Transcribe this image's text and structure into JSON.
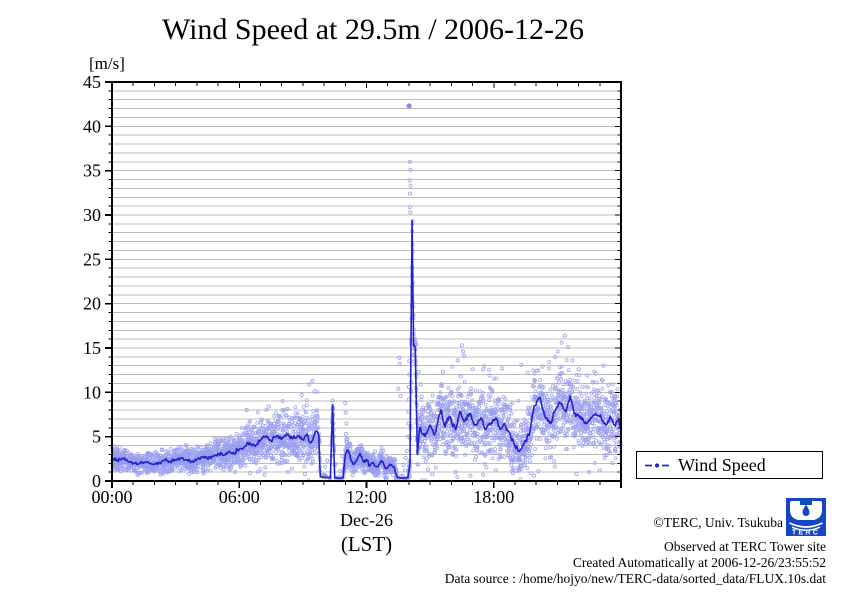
{
  "title": "Wind Speed at 29.5m / 2006-12-26",
  "y_axis": {
    "unit_label": "[m/s]",
    "min": 0,
    "max": 45,
    "major_step": 5,
    "minor_step": 1,
    "tick_values": [
      0,
      5,
      10,
      15,
      20,
      25,
      30,
      35,
      40,
      45
    ]
  },
  "x_axis": {
    "min_h": 0,
    "max_h": 24,
    "minor_step_h": 1,
    "major_step_h": 6,
    "tick_labels": [
      "00:00",
      "06:00",
      "12:00",
      "18:00"
    ],
    "tick_hours": [
      0,
      6,
      12,
      18
    ],
    "date_label": "Dec-26",
    "tz_label": "(LST)"
  },
  "legend": {
    "label": "Wind Speed"
  },
  "footer": {
    "copyright": "©TERC, Univ. Tsukuba",
    "observed": "Observed at TERC Tower site",
    "created": "Created Automatically at 2006-12-26/23:55:52",
    "source": "Data source : /home/hojyo/new/TERC-data/sorted_data/FLUX.10s.dat",
    "logo_text": "TERC"
  },
  "colors": {
    "scatter": "#989df0",
    "line": "#2121cd",
    "outlier_fill": "#8489ec",
    "grid": "#bcbcbc",
    "axis": "#000000",
    "logo_blue": "#1546c3"
  },
  "chart_data": {
    "type": "scatter",
    "x_unit": "hour (LST)",
    "y_unit": "m/s",
    "description": "10-second wind speed samples (open circles) with running-mean line; points = [hour, mean_ms, scatter_halfwidth_ms]",
    "series": [
      {
        "name": "Wind Speed",
        "points": [
          [
            0.0,
            2.6,
            0.8
          ],
          [
            0.25,
            2.3,
            0.8
          ],
          [
            0.5,
            2.5,
            0.8
          ],
          [
            0.75,
            2.2,
            0.8
          ],
          [
            1.0,
            2.0,
            0.7
          ],
          [
            1.25,
            1.9,
            0.7
          ],
          [
            1.5,
            2.1,
            0.7
          ],
          [
            1.75,
            2.0,
            0.7
          ],
          [
            2.0,
            1.9,
            0.7
          ],
          [
            2.25,
            2.1,
            0.8
          ],
          [
            2.5,
            2.3,
            0.8
          ],
          [
            2.75,
            2.2,
            0.8
          ],
          [
            3.0,
            2.4,
            0.8
          ],
          [
            3.25,
            2.6,
            0.9
          ],
          [
            3.5,
            2.4,
            0.9
          ],
          [
            3.75,
            2.2,
            0.9
          ],
          [
            4.0,
            2.4,
            0.9
          ],
          [
            4.25,
            2.7,
            1.0
          ],
          [
            4.5,
            2.5,
            1.0
          ],
          [
            4.75,
            2.8,
            1.0
          ],
          [
            5.0,
            3.1,
            1.1
          ],
          [
            5.25,
            2.9,
            1.1
          ],
          [
            5.5,
            3.3,
            1.2
          ],
          [
            5.75,
            3.1,
            1.2
          ],
          [
            6.0,
            3.6,
            1.3
          ],
          [
            6.25,
            3.9,
            1.4
          ],
          [
            6.5,
            4.3,
            1.5
          ],
          [
            6.75,
            3.9,
            1.5
          ],
          [
            7.0,
            4.6,
            1.6
          ],
          [
            7.25,
            5.1,
            1.6
          ],
          [
            7.5,
            4.5,
            1.6
          ],
          [
            7.75,
            5.0,
            1.7
          ],
          [
            8.0,
            4.7,
            1.7
          ],
          [
            8.25,
            5.3,
            1.8
          ],
          [
            8.5,
            4.8,
            1.8
          ],
          [
            8.75,
            5.1,
            1.9
          ],
          [
            9.0,
            4.7,
            1.9
          ],
          [
            9.2,
            5.3,
            2.0
          ],
          [
            9.35,
            4.3,
            2.0
          ],
          [
            9.5,
            5.0,
            2.0
          ],
          [
            9.65,
            5.6,
            1.8
          ],
          [
            9.75,
            5.2,
            1.5
          ],
          [
            9.82,
            0.5,
            0.25
          ],
          [
            10.0,
            0.4,
            0.2
          ],
          [
            10.3,
            0.35,
            0.2
          ],
          [
            10.4,
            8.6,
            0.9
          ],
          [
            10.5,
            0.35,
            0.2
          ],
          [
            10.7,
            0.3,
            0.2
          ],
          [
            10.9,
            0.4,
            0.3
          ],
          [
            11.0,
            3.0,
            1.0
          ],
          [
            11.1,
            3.5,
            1.0
          ],
          [
            11.25,
            2.5,
            0.9
          ],
          [
            11.4,
            1.9,
            0.9
          ],
          [
            11.55,
            2.4,
            0.9
          ],
          [
            11.7,
            3.1,
            0.9
          ],
          [
            11.85,
            2.2,
            0.9
          ],
          [
            12.0,
            2.4,
            0.9
          ],
          [
            12.15,
            1.7,
            0.8
          ],
          [
            12.3,
            2.1,
            0.8
          ],
          [
            12.5,
            1.6,
            0.8
          ],
          [
            12.7,
            2.3,
            0.8
          ],
          [
            12.9,
            1.4,
            0.8
          ],
          [
            13.1,
            1.9,
            0.8
          ],
          [
            13.3,
            1.6,
            0.8
          ],
          [
            13.45,
            0.4,
            0.25
          ],
          [
            13.7,
            0.3,
            0.2
          ],
          [
            13.95,
            0.4,
            0.3
          ],
          [
            14.05,
            2.0,
            1.2
          ],
          [
            14.15,
            29.4,
            1.5
          ],
          [
            14.22,
            15.2,
            1.5
          ],
          [
            14.3,
            15.0,
            1.5
          ],
          [
            14.4,
            3.0,
            1.6
          ],
          [
            14.5,
            6.0,
            1.9
          ],
          [
            14.76,
            5.0,
            2.0
          ],
          [
            15.0,
            6.3,
            2.0
          ],
          [
            15.2,
            5.2,
            2.1
          ],
          [
            15.5,
            8.0,
            2.1
          ],
          [
            15.7,
            6.1,
            2.1
          ],
          [
            15.9,
            7.3,
            2.2
          ],
          [
            16.2,
            5.8,
            2.2
          ],
          [
            16.4,
            7.8,
            2.2
          ],
          [
            16.6,
            6.7,
            2.2
          ],
          [
            16.9,
            7.6,
            2.3
          ],
          [
            17.1,
            6.3,
            2.3
          ],
          [
            17.4,
            7.1,
            2.3
          ],
          [
            17.6,
            5.8,
            2.3
          ],
          [
            17.8,
            6.5,
            2.3
          ],
          [
            18.1,
            7.1,
            2.3
          ],
          [
            18.3,
            5.8,
            2.2
          ],
          [
            18.5,
            6.5,
            2.2
          ],
          [
            18.8,
            5.0,
            2.1
          ],
          [
            19.0,
            3.9,
            2.0
          ],
          [
            19.2,
            3.3,
            2.0
          ],
          [
            19.5,
            4.6,
            2.1
          ],
          [
            19.7,
            5.4,
            2.1
          ],
          [
            19.9,
            8.4,
            2.2
          ],
          [
            20.15,
            9.4,
            2.3
          ],
          [
            20.4,
            7.4,
            2.3
          ],
          [
            20.7,
            6.5,
            2.3
          ],
          [
            20.9,
            8.0,
            2.3
          ],
          [
            21.1,
            8.9,
            2.4
          ],
          [
            21.4,
            7.8,
            2.4
          ],
          [
            21.6,
            9.6,
            2.4
          ],
          [
            21.8,
            7.6,
            2.4
          ],
          [
            22.1,
            7.3,
            2.3
          ],
          [
            22.3,
            6.5,
            2.3
          ],
          [
            22.5,
            6.9,
            2.3
          ],
          [
            22.8,
            7.6,
            2.3
          ],
          [
            23.0,
            7.3,
            2.3
          ],
          [
            23.3,
            6.3,
            2.3
          ],
          [
            23.5,
            7.3,
            2.3
          ],
          [
            23.7,
            6.3,
            2.2
          ],
          [
            23.9,
            6.9,
            2.2
          ],
          [
            24.0,
            5.8,
            2.0
          ]
        ]
      }
    ],
    "outliers": [
      [
        14.01,
        42.3,
        1
      ],
      [
        14.05,
        36.0
      ],
      [
        14.07,
        35.1
      ],
      [
        14.03,
        33.9
      ],
      [
        14.08,
        33.3
      ],
      [
        14.05,
        32.4
      ],
      [
        14.04,
        30.9
      ],
      [
        14.06,
        30.3
      ],
      [
        13.55,
        13.9
      ],
      [
        13.57,
        13.2
      ],
      [
        13.5,
        10.4
      ],
      [
        13.6,
        9.6
      ],
      [
        13.75,
        1.8
      ],
      [
        13.82,
        1.2
      ],
      [
        13.85,
        2.6
      ],
      [
        13.9,
        3.4
      ],
      [
        13.95,
        5.0
      ],
      [
        13.97,
        6.5
      ],
      [
        13.98,
        7.8
      ],
      [
        14.0,
        9.2
      ],
      [
        14.0,
        10.6
      ],
      [
        14.02,
        12.0
      ],
      [
        14.02,
        13.5
      ],
      [
        14.35,
        15.4
      ],
      [
        14.45,
        12.3
      ],
      [
        14.55,
        10.9
      ],
      [
        14.6,
        9.5
      ],
      [
        10.4,
        9.1
      ],
      [
        10.41,
        8.3
      ],
      [
        10.05,
        1.6
      ],
      [
        10.15,
        2.3
      ],
      [
        10.55,
        1.9
      ],
      [
        10.75,
        1.1
      ],
      [
        10.85,
        2.8
      ],
      [
        11.0,
        8.8
      ],
      [
        11.02,
        7.7
      ],
      [
        11.05,
        6.5
      ],
      [
        11.03,
        5.3
      ],
      [
        11.08,
        4.4
      ],
      [
        9.3,
        10.9
      ],
      [
        9.45,
        11.3
      ],
      [
        9.55,
        10.1
      ],
      [
        8.95,
        9.7
      ],
      [
        8.05,
        9.0
      ],
      [
        7.4,
        8.4
      ],
      [
        6.35,
        8.0
      ],
      [
        15.6,
        12.3
      ],
      [
        16.05,
        12.9
      ],
      [
        16.3,
        13.6
      ],
      [
        16.45,
        11.8
      ],
      [
        16.6,
        14.1
      ],
      [
        16.5,
        15.3
      ],
      [
        16.55,
        14.6
      ],
      [
        17.0,
        12.6
      ],
      [
        17.8,
        11.9
      ],
      [
        18.4,
        12.7
      ],
      [
        19.3,
        13.1
      ],
      [
        19.6,
        12.2
      ],
      [
        20.3,
        12.9
      ],
      [
        20.9,
        14.0
      ],
      [
        21.2,
        15.6
      ],
      [
        21.35,
        16.4
      ],
      [
        21.5,
        15.1
      ],
      [
        21.7,
        13.6
      ],
      [
        22.0,
        12.6
      ],
      [
        22.4,
        11.9
      ],
      [
        22.8,
        12.1
      ],
      [
        23.1,
        11.4
      ],
      [
        23.4,
        10.8
      ],
      [
        15.1,
        0.8
      ],
      [
        16.2,
        1.0
      ],
      [
        17.5,
        0.7
      ],
      [
        18.9,
        0.9
      ],
      [
        20.1,
        1.1
      ],
      [
        21.9,
        0.8
      ],
      [
        23.0,
        1.2
      ],
      [
        14.9,
        1.3
      ],
      [
        19.9,
        0.6
      ],
      [
        22.5,
        1.0
      ],
      [
        16.9,
        0.6
      ],
      [
        18.1,
        1.2
      ],
      [
        6.5,
        0.9
      ],
      [
        7.2,
        0.7
      ],
      [
        8.3,
        1.0
      ],
      [
        9.1,
        0.8
      ],
      [
        5.8,
        1.0
      ]
    ],
    "peak_event": {
      "hour": 14.15,
      "line_peak_ms": 29.4,
      "max_gust_ms": 42.3
    },
    "secondary_spike": {
      "hour": 10.4,
      "peak_ms": 8.6
    },
    "calm_periods_h": [
      [
        9.82,
        10.9
      ],
      [
        13.45,
        14.0
      ]
    ]
  },
  "render_hints": {
    "seed": 12345,
    "scatter_step_h": 0.018,
    "scatter_per_step": 3,
    "line_subdiv_h": 0.04,
    "line_jitter": 0.3
  }
}
